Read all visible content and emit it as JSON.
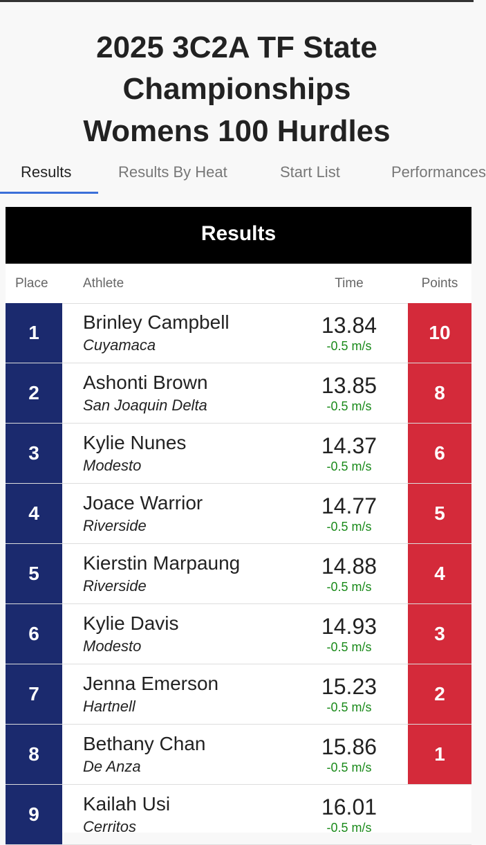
{
  "header": {
    "title": "2025 3C2A TF State Championships",
    "event": "Womens 100 Hurdles"
  },
  "tabs": [
    "Results",
    "Results By Heat",
    "Start List",
    "Performances"
  ],
  "table": {
    "title": "Results",
    "columns": [
      "Place",
      "Athlete",
      "Time",
      "Points"
    ],
    "rows": [
      {
        "place": 1,
        "athlete": "Brinley Campbell",
        "school": "Cuyamaca",
        "time": 13.84,
        "wind": "-0.5 m/s",
        "points": 10
      },
      {
        "place": 2,
        "athlete": "Ashonti Brown",
        "school": "San Joaquin Delta",
        "time": 13.85,
        "wind": "-0.5 m/s",
        "points": 8
      },
      {
        "place": 3,
        "athlete": "Kylie Nunes",
        "school": "Modesto",
        "time": 14.37,
        "wind": "-0.5 m/s",
        "points": 6
      },
      {
        "place": 4,
        "athlete": "Joace Warrior",
        "school": "Riverside",
        "time": 14.77,
        "wind": "-0.5 m/s",
        "points": 5
      },
      {
        "place": 5,
        "athlete": "Kierstin Marpaung",
        "school": "Riverside",
        "time": 14.88,
        "wind": "-0.5 m/s",
        "points": 4
      },
      {
        "place": 6,
        "athlete": "Kylie Davis",
        "school": "Modesto",
        "time": 14.93,
        "wind": "-0.5 m/s",
        "points": 3
      },
      {
        "place": 7,
        "athlete": "Jenna Emerson",
        "school": "Hartnell",
        "time": 15.23,
        "wind": "-0.5 m/s",
        "points": 2
      },
      {
        "place": 8,
        "athlete": "Bethany Chan",
        "school": "De Anza",
        "time": 15.86,
        "wind": "-0.5 m/s",
        "points": 1
      },
      {
        "place": 9,
        "athlete": "Kailah Usi",
        "school": "Cerritos",
        "time": 16.01,
        "wind": "-0.5 m/s"
      }
    ]
  }
}
